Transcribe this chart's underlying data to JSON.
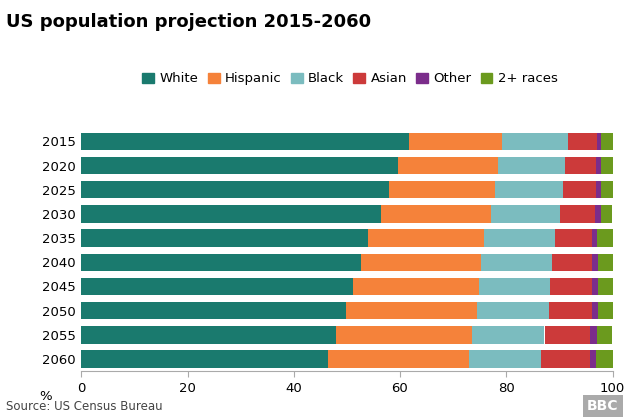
{
  "title": "US population projection 2015-2060",
  "years": [
    "2015",
    "2020",
    "2025",
    "2030",
    "2035",
    "2040",
    "2045",
    "2050",
    "2055",
    "2060"
  ],
  "categories": [
    "White",
    "Hispanic",
    "Black",
    "Asian",
    "Other",
    "2+ races"
  ],
  "colors": [
    "#1a7a6e",
    "#f5823a",
    "#7bbcbf",
    "#cc3a3a",
    "#7b2d8b",
    "#6b9a1e"
  ],
  "data": {
    "White": [
      61.6,
      59.7,
      58.0,
      56.4,
      54.0,
      52.6,
      51.2,
      49.8,
      48.0,
      46.4
    ],
    "Hispanic": [
      17.6,
      18.7,
      19.8,
      20.7,
      21.8,
      22.7,
      23.6,
      24.6,
      25.6,
      26.6
    ],
    "Black": [
      12.4,
      12.7,
      12.9,
      13.1,
      13.3,
      13.4,
      13.5,
      13.6,
      13.6,
      13.6
    ],
    "Asian": [
      5.4,
      5.8,
      6.2,
      6.6,
      7.0,
      7.4,
      7.8,
      8.2,
      8.6,
      9.1
    ],
    "Other": [
      0.8,
      0.9,
      0.9,
      1.0,
      1.0,
      1.1,
      1.1,
      1.1,
      1.2,
      1.2
    ],
    "2+ races": [
      2.2,
      2.2,
      2.2,
      2.2,
      2.9,
      2.8,
      2.8,
      2.7,
      3.0,
      3.1
    ]
  },
  "xlabel": "%",
  "xlim": [
    0,
    100
  ],
  "xticks": [
    0,
    20,
    40,
    60,
    80,
    100
  ],
  "source": "Source: US Census Bureau",
  "bbc_logo": "BBC",
  "background_color": "#ffffff",
  "bar_height": 0.72,
  "title_fontsize": 13,
  "legend_fontsize": 9.5,
  "tick_fontsize": 9.5,
  "source_fontsize": 8.5
}
